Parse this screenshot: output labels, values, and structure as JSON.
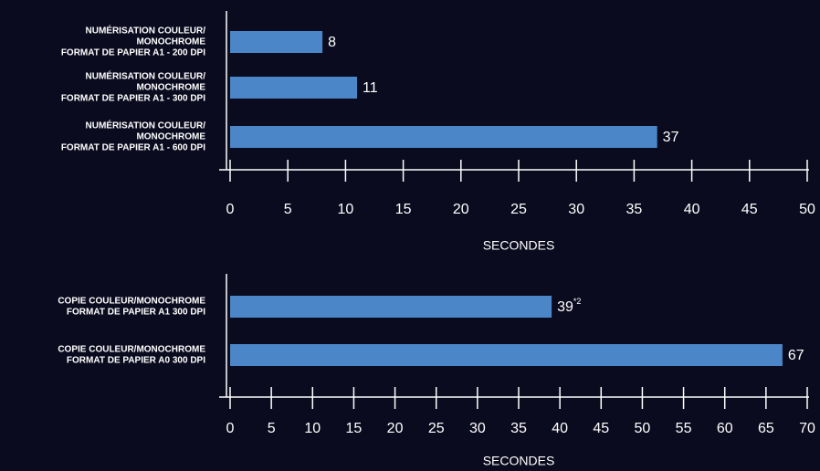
{
  "chart_data": [
    {
      "type": "bar",
      "orientation": "horizontal",
      "color": "#4a86c8",
      "categories": [
        [
          "NUMÉRISATION COULEUR/",
          "MONOCHROME",
          "FORMAT DE PAPIER A1 - 200 DPI"
        ],
        [
          "NUMÉRISATION COULEUR/",
          "MONOCHROME",
          "FORMAT DE PAPIER A1 - 300 DPI"
        ],
        [
          "NUMÉRISATION COULEUR/",
          "MONOCHROME",
          "FORMAT DE PAPIER A1 - 600 DPI"
        ]
      ],
      "values": [
        8,
        11,
        37
      ],
      "xlabel": "SECONDES",
      "xlim": [
        0,
        50
      ],
      "xticks": [
        0,
        5,
        10,
        15,
        20,
        25,
        30,
        35,
        40,
        45,
        50
      ]
    },
    {
      "type": "bar",
      "orientation": "horizontal",
      "color": "#4a86c8",
      "categories": [
        [
          "COPIE COULEUR/MONOCHROME",
          "FORMAT DE PAPIER A1 300 DPI"
        ],
        [
          "COPIE COULEUR/MONOCHROME",
          "FORMAT DE PAPIER A0 300 DPI"
        ]
      ],
      "values": [
        39,
        67
      ],
      "footnotes": [
        "*2",
        null
      ],
      "xlabel": "SECONDES",
      "xlim": [
        0,
        70
      ],
      "xticks": [
        0,
        5,
        10,
        15,
        20,
        25,
        30,
        35,
        40,
        45,
        50,
        55,
        60,
        65,
        70
      ]
    }
  ]
}
